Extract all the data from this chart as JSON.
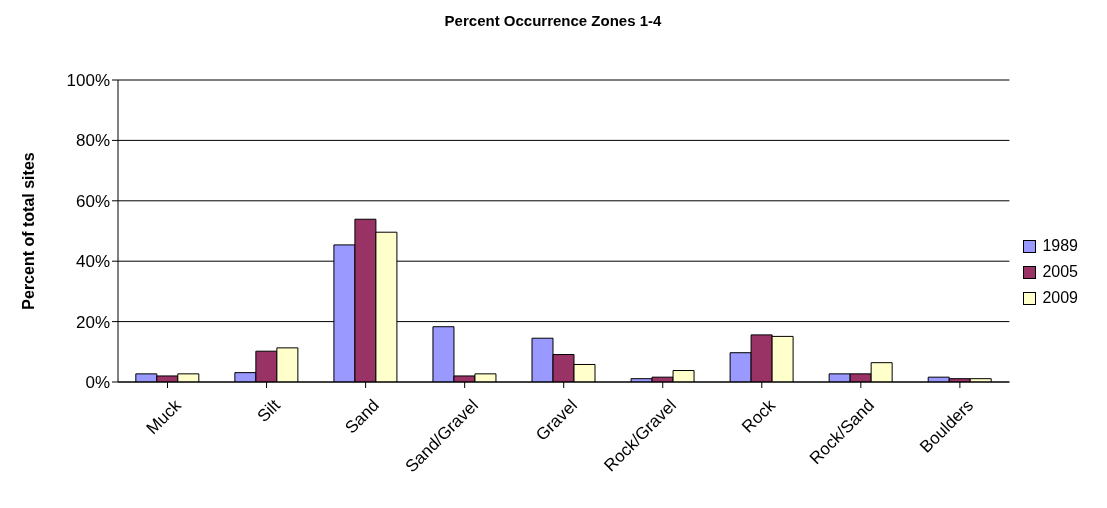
{
  "chart_data": {
    "type": "bar",
    "title": "Percent Occurrence Zones 1-4",
    "ylabel": "Percent of total sites",
    "categories": [
      "Muck",
      "Silt",
      "Sand",
      "Sand/Gravel",
      "Gravel",
      "Rock/Gravel",
      "Rock",
      "Rock/Sand",
      "Boulders"
    ],
    "series": [
      {
        "name": "1989",
        "color": "#9999ff",
        "values": [
          2.7,
          3.1,
          45.4,
          18.3,
          14.5,
          1.1,
          9.7,
          2.7,
          1.6
        ]
      },
      {
        "name": "2005",
        "color": "#993366",
        "values": [
          2.0,
          10.2,
          53.9,
          2.0,
          9.1,
          1.6,
          15.6,
          2.7,
          1.1
        ]
      },
      {
        "name": "2009",
        "color": "#ffffcc",
        "values": [
          2.7,
          11.3,
          49.6,
          2.7,
          5.8,
          3.8,
          15.1,
          6.4,
          1.1
        ]
      }
    ],
    "ylim": [
      0,
      100
    ],
    "yticks": [
      {
        "value": 0,
        "label": "0%"
      },
      {
        "value": 20,
        "label": "20%"
      },
      {
        "value": 40,
        "label": "40%"
      },
      {
        "value": 60,
        "label": "60%"
      },
      {
        "value": 80,
        "label": "80%"
      },
      {
        "value": 100,
        "label": "100%"
      }
    ],
    "grid": "y",
    "legend": "right"
  }
}
